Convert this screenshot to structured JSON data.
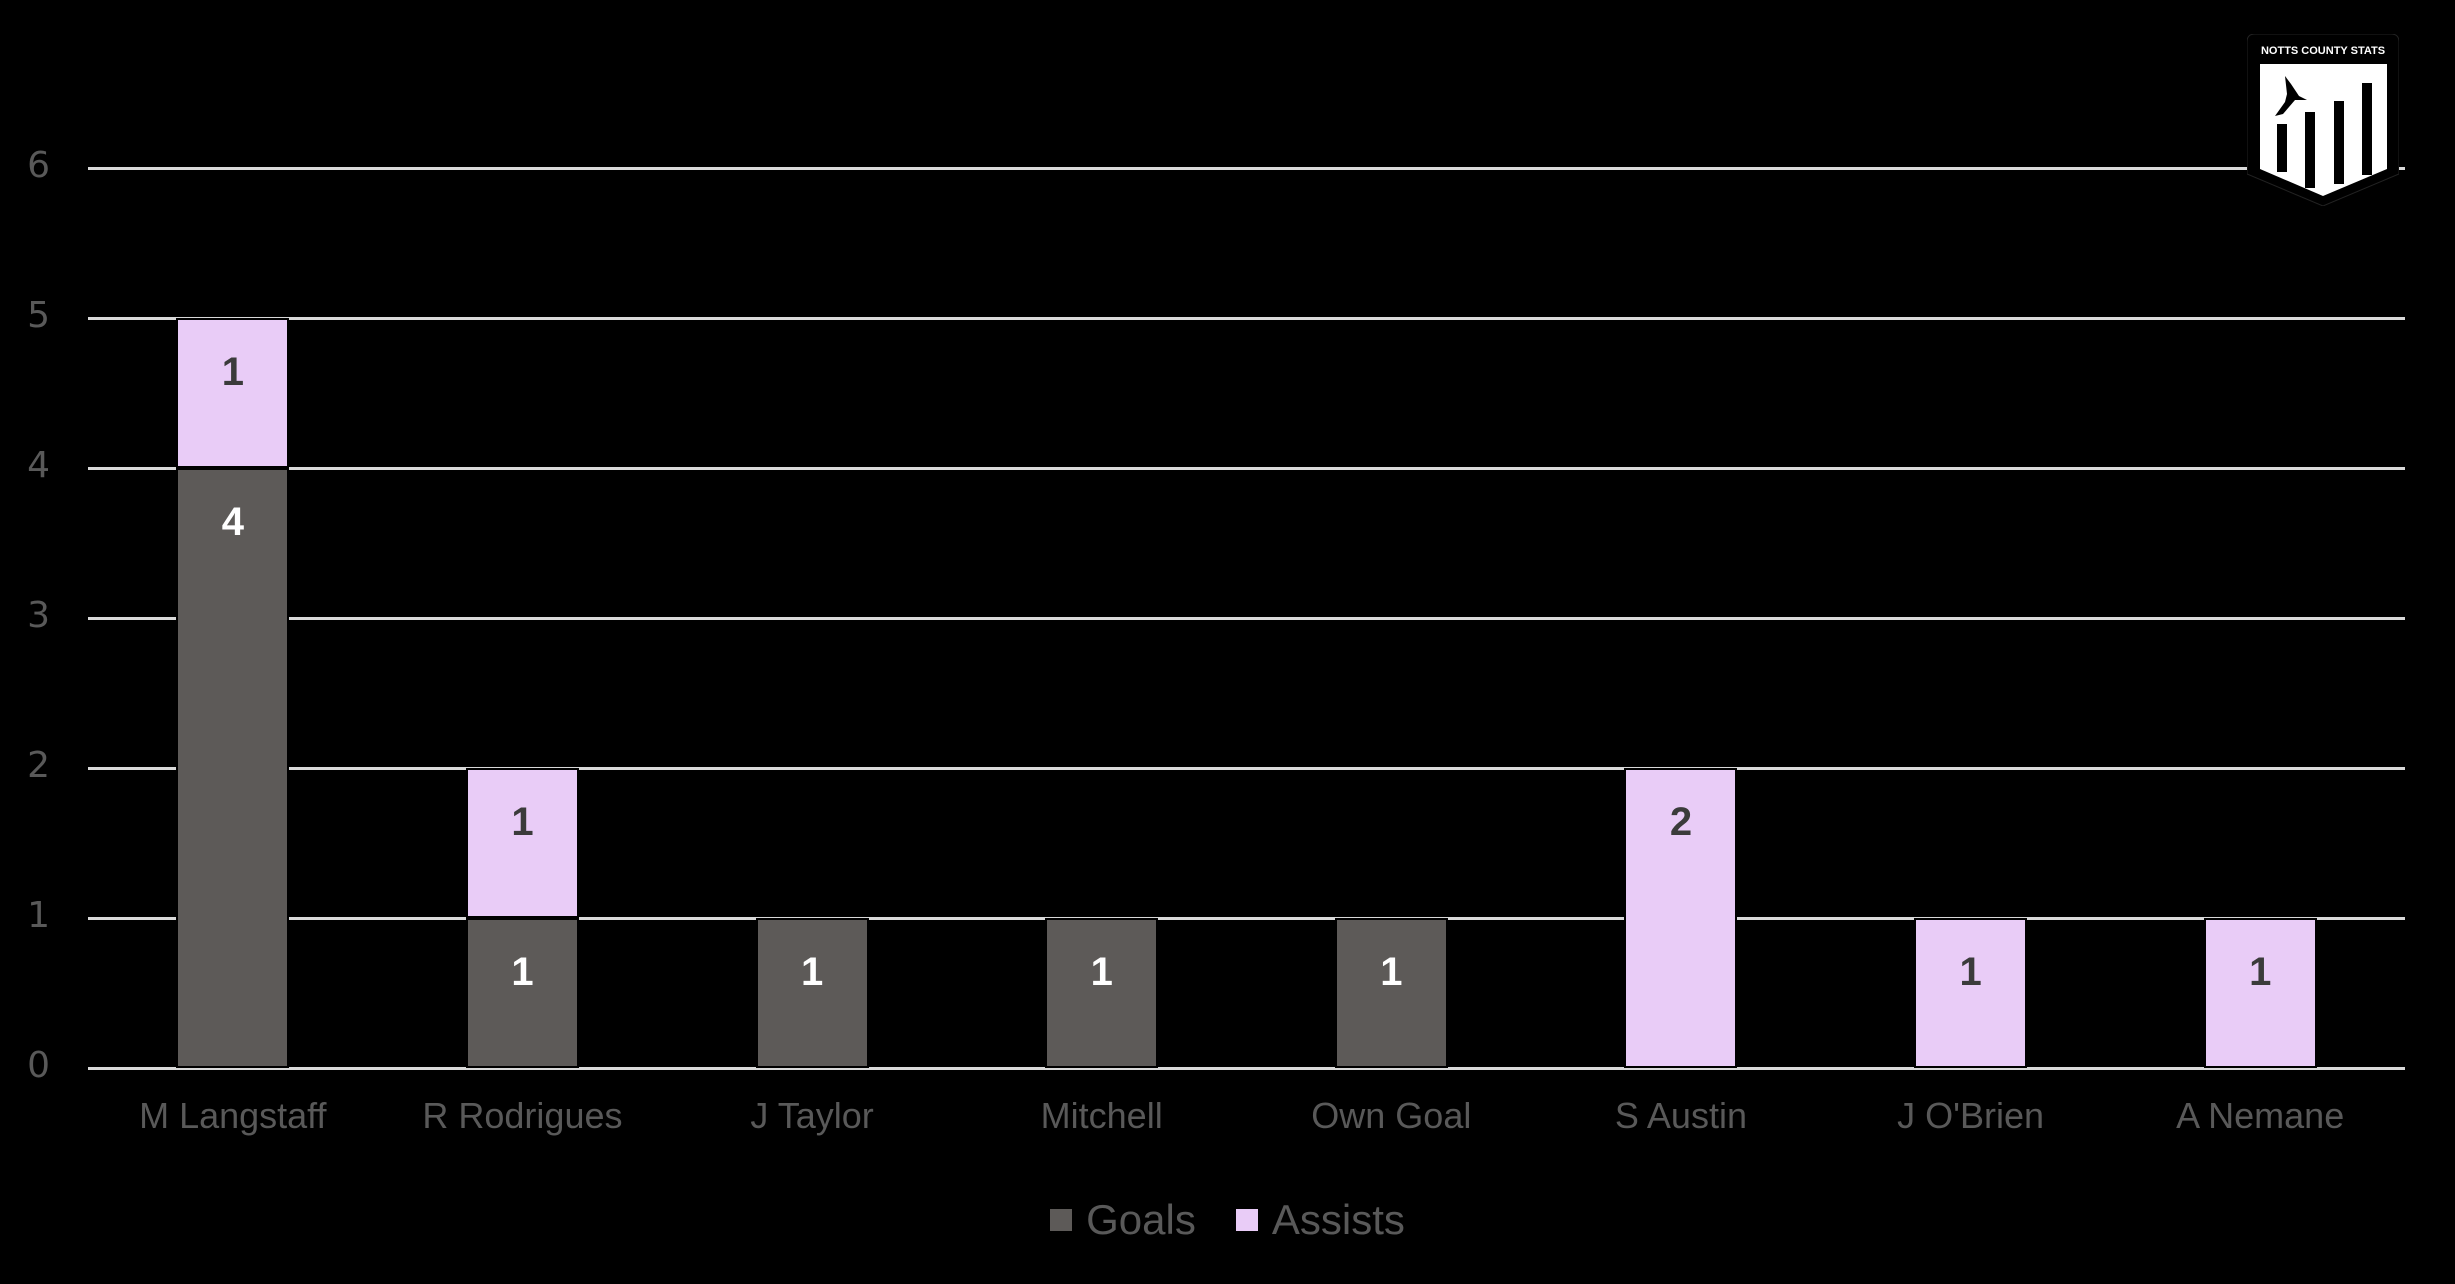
{
  "chart_data": {
    "type": "bar",
    "stacked": true,
    "title": "",
    "xlabel": "",
    "ylabel": "",
    "ylim": [
      0,
      6
    ],
    "yticks": [
      0,
      1,
      2,
      3,
      4,
      5,
      6
    ],
    "grid": true,
    "legend_position": "bottom",
    "categories": [
      "M Langstaff",
      "R Rodrigues",
      "J Taylor",
      "Mitchell",
      "Own Goal",
      "S Austin",
      "J O'Brien",
      "A Nemane"
    ],
    "series": [
      {
        "name": "Goals",
        "color": "#5d5a58",
        "values": [
          4,
          1,
          1,
          1,
          1,
          0,
          0,
          0
        ]
      },
      {
        "name": "Assists",
        "color": "#e9ccf7",
        "values": [
          1,
          1,
          0,
          0,
          0,
          2,
          1,
          1
        ]
      }
    ]
  },
  "legend": {
    "goals_label": "Goals",
    "assists_label": "Assists"
  },
  "logo": {
    "text": "NOTTS COUNTY STATS"
  },
  "colors": {
    "background": "#000000",
    "goals": "#5d5a58",
    "assists": "#e9ccf7",
    "gridline": "#d9d9d9",
    "axis_text": "#595959"
  }
}
